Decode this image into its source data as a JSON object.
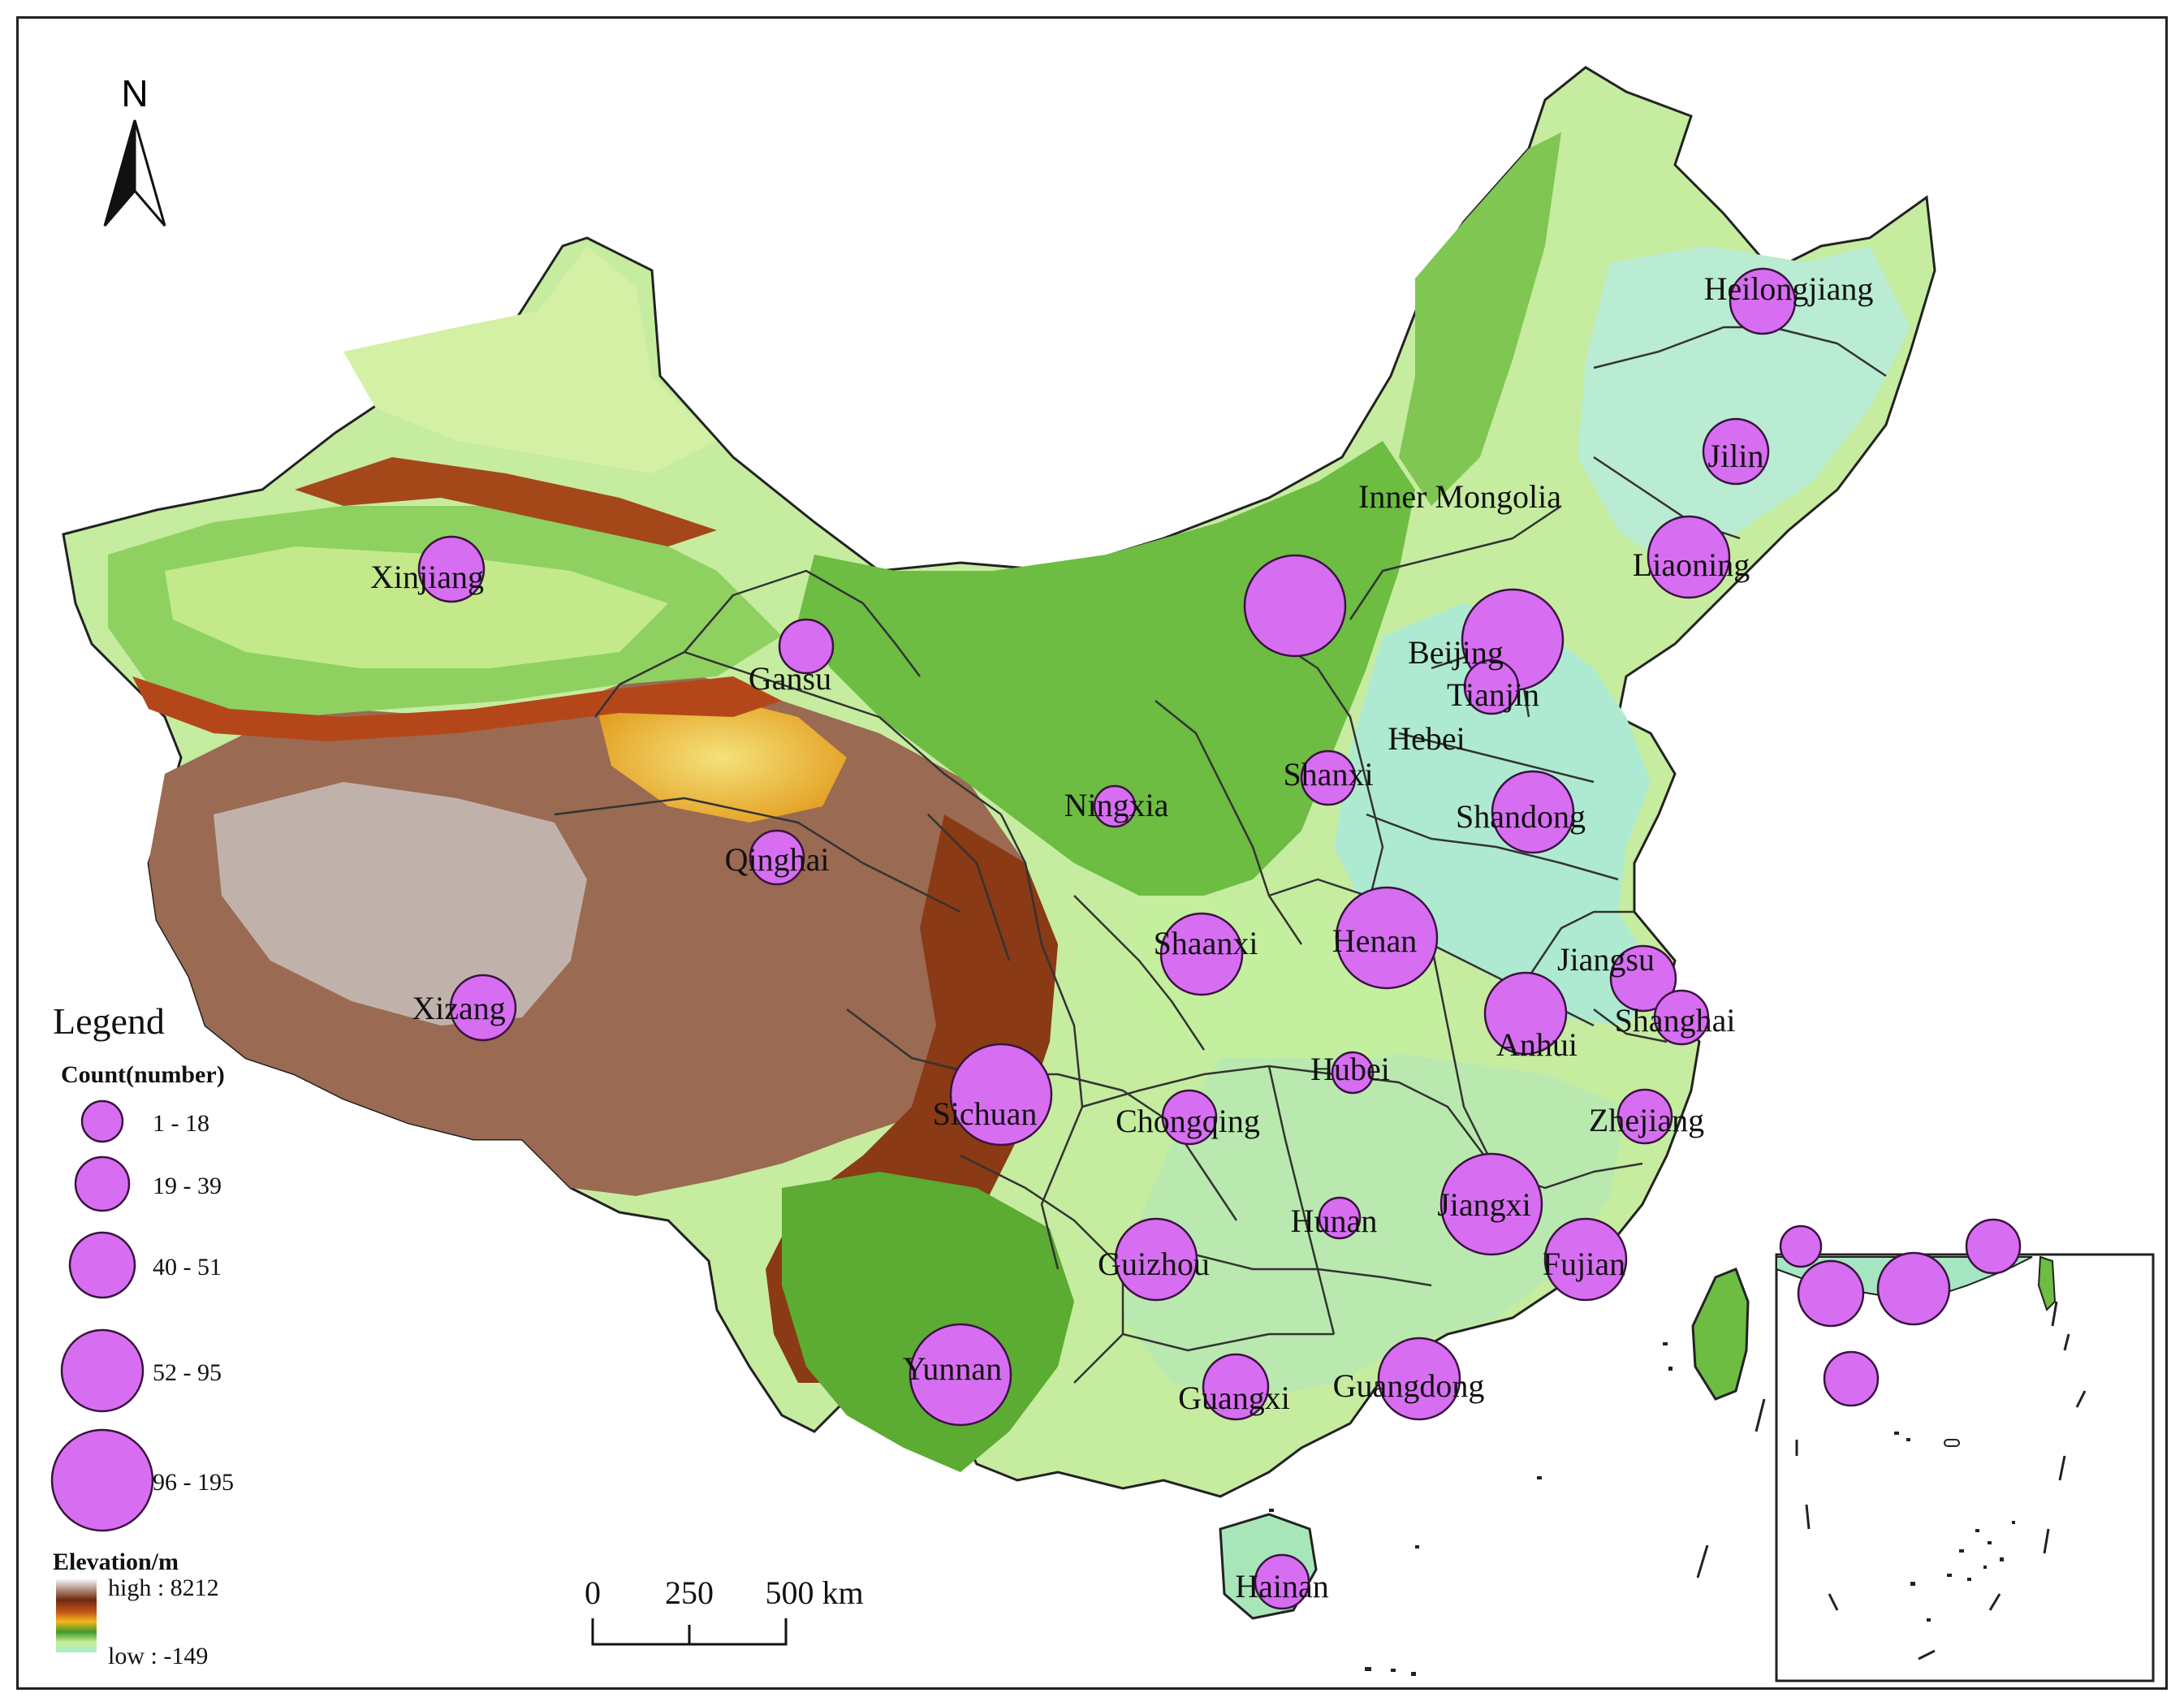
{
  "map": {
    "north_label": "N",
    "legend_title": "Legend",
    "count_title": "Count(number)",
    "count_classes": [
      {
        "label": "1 - 18",
        "range": [
          1,
          18
        ]
      },
      {
        "label": "19 - 39",
        "range": [
          19,
          39
        ]
      },
      {
        "label": "40 - 51",
        "range": [
          40,
          51
        ]
      },
      {
        "label": "52 - 95",
        "range": [
          52,
          95
        ]
      },
      {
        "label": "96 - 195",
        "range": [
          96,
          195
        ]
      }
    ],
    "elevation_title": "Elevation/m",
    "elevation_high": "high : 8212",
    "elevation_low": "low : -149",
    "scale_ticks": [
      "0",
      "250",
      "500 km"
    ],
    "colors": {
      "symbol_fill": "#d76ef2",
      "symbol_stroke": "#3a1240",
      "lowland": "#a8ecd0",
      "plain": "#d6f2a0",
      "hill": "#5fb83a",
      "mountain": "#e8a11a",
      "high_mountain": "#7a2c10",
      "peak": "#e8e8e8",
      "boundary": "#333333"
    },
    "provinces": [
      {
        "name": "Heilongjiang",
        "class": 2
      },
      {
        "name": "Jilin",
        "class": 2
      },
      {
        "name": "Inner Mongolia",
        "class": 4
      },
      {
        "name": "Liaoning",
        "class": 3
      },
      {
        "name": "Xinjiang",
        "class": 2
      },
      {
        "name": "Gansu",
        "class": 1
      },
      {
        "name": "Beijing",
        "class": 4
      },
      {
        "name": "Tianjin",
        "class": 1
      },
      {
        "name": "Hebei",
        "class": 0
      },
      {
        "name": "Shanxi",
        "class": 1
      },
      {
        "name": "Ningxia",
        "class": 0
      },
      {
        "name": "Shandong",
        "class": 3
      },
      {
        "name": "Qinghai",
        "class": 1
      },
      {
        "name": "Shaanxi",
        "class": 3
      },
      {
        "name": "Henan",
        "class": 4
      },
      {
        "name": "Jiangsu",
        "class": 2
      },
      {
        "name": "Xizang",
        "class": 2
      },
      {
        "name": "Shanghai",
        "class": 1
      },
      {
        "name": "Anhui",
        "class": 3
      },
      {
        "name": "Hubei",
        "class": 0
      },
      {
        "name": "Sichuan",
        "class": 4
      },
      {
        "name": "Chongqing",
        "class": 1
      },
      {
        "name": "Zhejiang",
        "class": 1
      },
      {
        "name": "Hunan",
        "class": 0
      },
      {
        "name": "Jiangxi",
        "class": 4
      },
      {
        "name": "Guizhou",
        "class": 3
      },
      {
        "name": "Fujian",
        "class": 3
      },
      {
        "name": "Yunnan",
        "class": 4
      },
      {
        "name": "Guangxi",
        "class": 2
      },
      {
        "name": "Guangdong",
        "class": 3
      },
      {
        "name": "Hainan",
        "class": 1
      }
    ]
  }
}
